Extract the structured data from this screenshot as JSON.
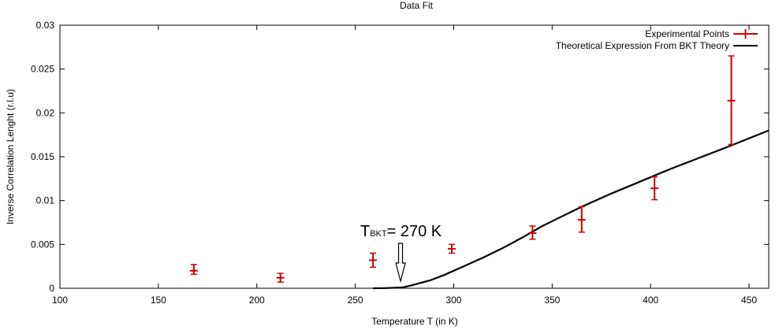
{
  "chart_data": {
    "type": "scatter",
    "title": "Data Fit",
    "xlabel": "Temperature T (in K)",
    "ylabel": "Inverse Correlation Lenght (r.l.u)",
    "xlim": [
      100,
      460
    ],
    "ylim": [
      0,
      0.03
    ],
    "xticks": [
      100,
      150,
      200,
      250,
      300,
      350,
      400,
      450
    ],
    "yticks": [
      0,
      0.005,
      0.01,
      0.015,
      0.02,
      0.025,
      0.03
    ],
    "ytick_labels": [
      "0",
      "0.005",
      "0.01",
      "0.015",
      "0.02",
      "0.025",
      "0.03"
    ],
    "grid": false,
    "legend_position": "top-right",
    "colors": {
      "experimental": "#cc0000",
      "theory": "#000000"
    },
    "series": [
      {
        "name": "Experimental Points",
        "style": "errorbars",
        "x": [
          168,
          212,
          259,
          299,
          340,
          365,
          402,
          441
        ],
        "y": [
          0.002,
          0.0012,
          0.0032,
          0.0045,
          0.0063,
          0.0078,
          0.0114,
          0.0214
        ],
        "yerr_low": [
          0.0016,
          0.0007,
          0.0024,
          0.004,
          0.0056,
          0.0064,
          0.0101,
          0.0164
        ],
        "yerr_high": [
          0.0027,
          0.0017,
          0.004,
          0.005,
          0.0071,
          0.0093,
          0.0127,
          0.0265
        ]
      },
      {
        "name": "Theoretical Expression From BKT Theory",
        "style": "line",
        "x": [
          259,
          265,
          270,
          274,
          278,
          283,
          288,
          295,
          305,
          315,
          325,
          335,
          345,
          355,
          365,
          380,
          395,
          410,
          425,
          440,
          450,
          460
        ],
        "y": [
          0,
          2e-05,
          5e-05,
          0.0001,
          0.0003,
          0.0006,
          0.0009,
          0.0015,
          0.0025,
          0.0035,
          0.0046,
          0.0058,
          0.0071,
          0.0082,
          0.0093,
          0.0108,
          0.0122,
          0.0136,
          0.0149,
          0.0162,
          0.0171,
          0.018
        ]
      }
    ],
    "annotation": {
      "symbol": "T",
      "subscript": "BKT",
      "text": "= 270 K",
      "x": 273
    }
  }
}
